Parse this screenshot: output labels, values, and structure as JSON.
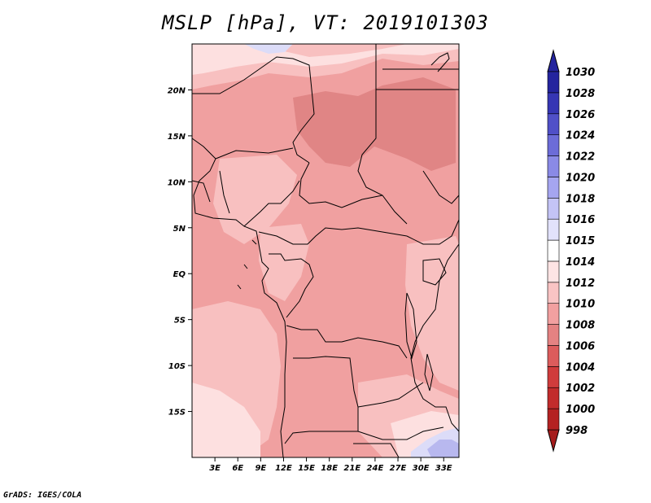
{
  "title": "MSLP [hPa], VT: 2019101303",
  "credit": "GrADS: IGES/COLA",
  "map": {
    "lon_range": [
      0,
      35
    ],
    "lat_range": [
      -20,
      25
    ],
    "lon_ticks": [
      {
        "value": 3,
        "label": "3E"
      },
      {
        "value": 6,
        "label": "6E"
      },
      {
        "value": 9,
        "label": "9E"
      },
      {
        "value": 12,
        "label": "12E"
      },
      {
        "value": 15,
        "label": "15E"
      },
      {
        "value": 18,
        "label": "18E"
      },
      {
        "value": 21,
        "label": "21E"
      },
      {
        "value": 24,
        "label": "24E"
      },
      {
        "value": 27,
        "label": "27E"
      },
      {
        "value": 30,
        "label": "30E"
      },
      {
        "value": 33,
        "label": "33E"
      }
    ],
    "lat_ticks": [
      {
        "value": 20,
        "label": "20N"
      },
      {
        "value": 15,
        "label": "15N"
      },
      {
        "value": 10,
        "label": "10N"
      },
      {
        "value": 5,
        "label": "5N"
      },
      {
        "value": 0,
        "label": "EQ"
      },
      {
        "value": -5,
        "label": "5S"
      },
      {
        "value": -10,
        "label": "10S"
      },
      {
        "value": -15,
        "label": "15S"
      }
    ]
  },
  "colorbar": {
    "levels": [
      {
        "label": "998",
        "color": "#a51c1c"
      },
      {
        "label": "1000",
        "color": "#b42222"
      },
      {
        "label": "1002",
        "color": "#c22c2c"
      },
      {
        "label": "1004",
        "color": "#d03c3c"
      },
      {
        "label": "1006",
        "color": "#dc5c5c"
      },
      {
        "label": "1008",
        "color": "#e48282"
      },
      {
        "label": "1010",
        "color": "#f2a0a0"
      },
      {
        "label": "1012",
        "color": "#f9c4c4"
      },
      {
        "label": "1014",
        "color": "#fde4e4"
      },
      {
        "label": "1015",
        "color": "#ffffff"
      },
      {
        "label": "1016",
        "color": "#e2e2fb"
      },
      {
        "label": "1018",
        "color": "#c4c4f6"
      },
      {
        "label": "1020",
        "color": "#a5a5f0"
      },
      {
        "label": "1022",
        "color": "#8a8ae6"
      },
      {
        "label": "1024",
        "color": "#6c6cd8"
      },
      {
        "label": "1026",
        "color": "#5050c8"
      },
      {
        "label": "1028",
        "color": "#3636b4"
      },
      {
        "label": "1030",
        "color": "#24249e"
      }
    ]
  },
  "field_colors": {
    "c1008": "#e08585",
    "c1010": "#f0a0a0",
    "c1012": "#f8c0c0",
    "c1014": "#fde0e0",
    "c1016": "#dcdcf8",
    "c1018": "#b8b8ef"
  }
}
